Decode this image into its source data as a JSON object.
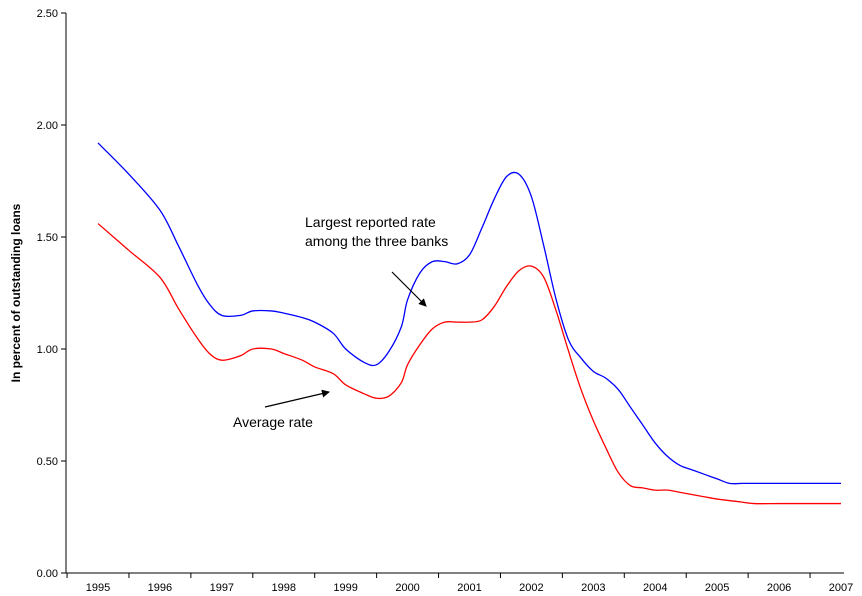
{
  "chart_data": {
    "type": "line",
    "title": "",
    "xlabel": "",
    "ylabel": "In percent of outstanding loans",
    "ylim": [
      0,
      2.5
    ],
    "yticks": [
      "0.00",
      "0.50",
      "1.00",
      "1.50",
      "2.00",
      "2.50"
    ],
    "xticks": [
      "1995",
      "1996",
      "1997",
      "1998",
      "1999",
      "2000",
      "2001",
      "2002",
      "2003",
      "2004",
      "2005",
      "2006",
      "2007"
    ],
    "xlim": [
      1995,
      2007
    ],
    "grid": false,
    "legend": "none",
    "series": [
      {
        "color": "#0000ff",
        "x": [
          1995,
          1995.5,
          1996,
          1996.3,
          1996.6,
          1996.8,
          1997,
          1997.3,
          1997.5,
          1997.8,
          1998,
          1998.3,
          1998.5,
          1998.8,
          1999,
          1999.3,
          1999.5,
          1999.7,
          1999.9,
          2000,
          2000.2,
          2000.4,
          2000.6,
          2000.8,
          2001,
          2001.2,
          2001.4,
          2001.6,
          2001.8,
          2002,
          2002.2,
          2002.4,
          2002.6,
          2002.8,
          2003,
          2003.2,
          2003.4,
          2003.6,
          2003.8,
          2004,
          2004.2,
          2004.4,
          2004.6,
          2004.8,
          2005,
          2005.2,
          2005.4,
          2005.6,
          2005.8,
          2006,
          2006.3,
          2006.6,
          2007
        ],
        "values": [
          1.92,
          1.78,
          1.62,
          1.46,
          1.29,
          1.2,
          1.15,
          1.15,
          1.17,
          1.17,
          1.16,
          1.14,
          1.12,
          1.07,
          1.0,
          0.94,
          0.93,
          0.99,
          1.1,
          1.22,
          1.34,
          1.39,
          1.39,
          1.38,
          1.42,
          1.54,
          1.67,
          1.77,
          1.78,
          1.68,
          1.46,
          1.22,
          1.04,
          0.96,
          0.9,
          0.87,
          0.82,
          0.74,
          0.66,
          0.58,
          0.52,
          0.48,
          0.46,
          0.44,
          0.42,
          0.4,
          0.4,
          0.4,
          0.4,
          0.4,
          0.4,
          0.4,
          0.4
        ]
      },
      {
        "color": "#ff0000",
        "x": [
          1995,
          1995.5,
          1996,
          1996.3,
          1996.6,
          1996.8,
          1997,
          1997.3,
          1997.5,
          1997.8,
          1998,
          1998.3,
          1998.5,
          1998.8,
          1999,
          1999.3,
          1999.5,
          1999.7,
          1999.9,
          2000,
          2000.2,
          2000.4,
          2000.6,
          2000.8,
          2001,
          2001.2,
          2001.4,
          2001.6,
          2001.8,
          2002,
          2002.2,
          2002.4,
          2002.6,
          2002.8,
          2003,
          2003.2,
          2003.4,
          2003.6,
          2003.8,
          2004,
          2004.2,
          2004.4,
          2004.6,
          2004.8,
          2005,
          2005.3,
          2005.6,
          2006,
          2006.4,
          2007
        ],
        "values": [
          1.56,
          1.44,
          1.32,
          1.18,
          1.05,
          0.98,
          0.95,
          0.97,
          1.0,
          1.0,
          0.98,
          0.95,
          0.92,
          0.89,
          0.84,
          0.8,
          0.78,
          0.79,
          0.85,
          0.93,
          1.02,
          1.09,
          1.12,
          1.12,
          1.12,
          1.13,
          1.19,
          1.28,
          1.35,
          1.37,
          1.32,
          1.17,
          0.99,
          0.82,
          0.68,
          0.56,
          0.45,
          0.39,
          0.38,
          0.37,
          0.37,
          0.36,
          0.35,
          0.34,
          0.33,
          0.32,
          0.31,
          0.31,
          0.31,
          0.31
        ]
      }
    ],
    "annotations": [
      {
        "text_lines": [
          "Largest reported rate",
          "among the three banks"
        ]
      },
      {
        "text_lines": [
          "Average rate"
        ]
      }
    ]
  }
}
